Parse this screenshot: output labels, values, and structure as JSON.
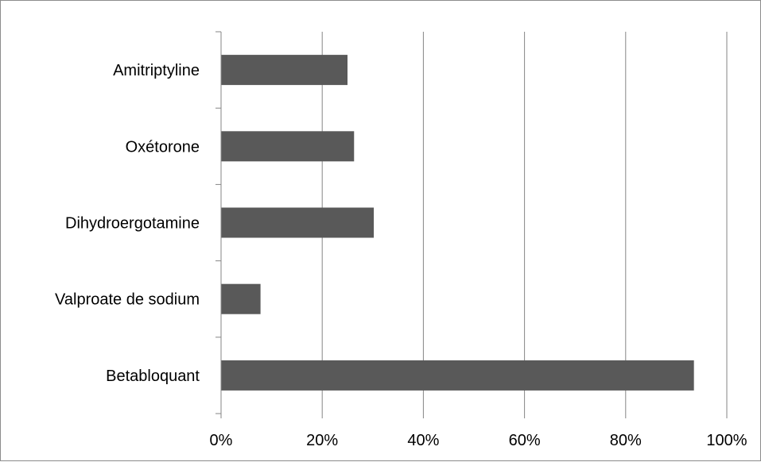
{
  "chart_data": {
    "type": "bar",
    "orientation": "horizontal",
    "title": "",
    "xlabel": "",
    "ylabel": "",
    "categories": [
      "Betabloquant",
      "Valproate de sodium",
      "Dihydroergotamine",
      "Oxétorone",
      "Amitriptyline"
    ],
    "values": [
      93.5,
      7.8,
      30.2,
      26.3,
      25.0
    ],
    "xlim": [
      0,
      100
    ],
    "x_ticks": [
      "0%",
      "20%",
      "40%",
      "60%",
      "80%",
      "100%"
    ],
    "grid": "vertical",
    "legend": "none",
    "colors": {
      "bar": "#595959",
      "grid": "#868686",
      "axis": "#868686",
      "frame": "#8c8c8c"
    }
  }
}
